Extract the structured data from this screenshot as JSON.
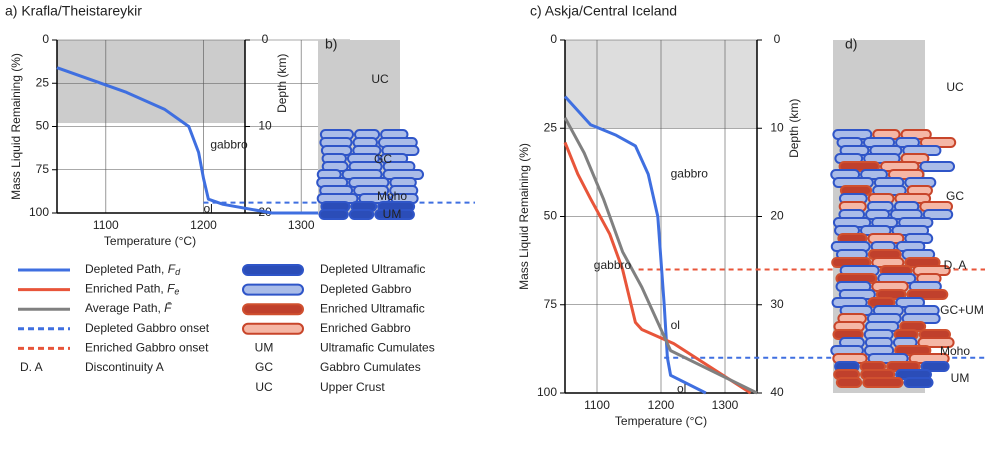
{
  "chart_data": [
    {
      "type": "line",
      "title": "a) Krafla/Theistareykir",
      "x_label": "Temperature (°C)",
      "y_label": "Mass Liquid Remaining (%)",
      "y2_label": "Depth (km)",
      "xlim": [
        1050,
        1350
      ],
      "xticks": [
        1100,
        1200,
        1300
      ],
      "ylim": [
        0,
        100
      ],
      "yticks": [
        0,
        25,
        50,
        75,
        100
      ],
      "y2lim": [
        0,
        20
      ],
      "y2ticks": [
        0,
        10,
        20
      ],
      "shaded_to": 48,
      "shade_color": "#cccccc",
      "series": [
        {
          "color": "#3f6fe0",
          "x": [
            1050,
            1080,
            1120,
            1160,
            1185,
            1195,
            1200,
            1205,
            1220,
            1270,
            1350
          ],
          "values": [
            16,
            22,
            30,
            40,
            50,
            65,
            80,
            92,
            95,
            100,
            100
          ]
        }
      ],
      "annotations": [
        {
          "text": "gabbro",
          "x": 1207,
          "y": 61,
          "color": "#3f6fe0"
        },
        {
          "text": "ol",
          "x": 1200,
          "y": 98,
          "color": "#3f6fe0"
        }
      ],
      "hlines": [
        {
          "value": 94,
          "from": 1200,
          "color": "#3f6fe0"
        }
      ]
    },
    {
      "type": "line",
      "title": "c) Askja/Central Iceland",
      "x_label": "Temperature (°C)",
      "y_label": "Mass Liquid Remaining (%)",
      "y2_label": "Depth (km)",
      "xlim": [
        1050,
        1350
      ],
      "xticks": [
        1100,
        1200,
        1300
      ],
      "ylim": [
        0,
        100
      ],
      "yticks": [
        0,
        25,
        50,
        75,
        100
      ],
      "y2lim": [
        0,
        40
      ],
      "y2ticks": [
        0,
        10,
        20,
        30,
        40
      ],
      "shaded_to": 25,
      "shade_color": "#dddddd",
      "series": [
        {
          "color": "#3f6fe0",
          "x": [
            1050,
            1070,
            1090,
            1130,
            1160,
            1180,
            1195,
            1205,
            1210,
            1215,
            1270
          ],
          "values": [
            16,
            20,
            24,
            27,
            30,
            38,
            50,
            75,
            90,
            95,
            100
          ]
        },
        {
          "color": "#e8553a",
          "x": [
            1050,
            1070,
            1090,
            1120,
            1140,
            1160,
            1170,
            1220,
            1340
          ],
          "values": [
            29,
            38,
            45,
            55,
            65,
            80,
            82,
            86,
            100
          ]
        },
        {
          "color": "#808080",
          "x": [
            1050,
            1080,
            1110,
            1140,
            1170,
            1195,
            1215,
            1350
          ],
          "values": [
            22,
            32,
            45,
            60,
            70,
            80,
            88,
            100
          ]
        }
      ],
      "annotations": [
        {
          "text": "gabbro",
          "x": 1215,
          "y": 38,
          "color": "#3f6fe0"
        },
        {
          "text": "gabbro",
          "x": 1095,
          "y": 64,
          "color": "#e8553a"
        },
        {
          "text": "ol",
          "x": 1215,
          "y": 81,
          "color": "#e8553a"
        },
        {
          "text": "ol",
          "x": 1225,
          "y": 99,
          "color": "#3f6fe0"
        }
      ],
      "hlines": [
        {
          "value": 65,
          "from": 1165,
          "color": "#e8553a"
        },
        {
          "value": 90,
          "from": 1205,
          "color": "#3f6fe0"
        }
      ]
    }
  ],
  "diagrams": [
    {
      "title": "b)",
      "labels": [
        "UC",
        "GC",
        "Moho",
        "UM"
      ]
    },
    {
      "title": "d)",
      "labels": [
        "UC",
        "GC",
        "D. A",
        "GC+UM",
        "Moho",
        "UM"
      ]
    }
  ],
  "legend": {
    "paths": [
      {
        "label": "Depleted Path, ",
        "symbol": "F",
        "sub": "d",
        "color": "#3f6fe0",
        "style": "solid"
      },
      {
        "label": "Enriched Path, ",
        "symbol": "F",
        "sub": "e",
        "color": "#e8553a",
        "style": "solid"
      },
      {
        "label": "Average Path, ",
        "symbol": "F̄",
        "color": "#808080",
        "style": "solid"
      },
      {
        "label": "Depleted Gabbro onset",
        "color": "#3f6fe0",
        "style": "dashed"
      },
      {
        "label": "Enriched Gabbro onset",
        "color": "#e8553a",
        "style": "dashed"
      },
      {
        "abbr": "D. A",
        "label": "Discontinuity A"
      }
    ],
    "rocks": [
      {
        "label": "Depleted Ultramafic",
        "fill": "#2b4db8",
        "stroke": "#2f55c8"
      },
      {
        "label": "Depleted Gabbro",
        "fill": "#aabce8",
        "stroke": "#2f55c8"
      },
      {
        "label": "Enriched Ultramafic",
        "fill": "#c0402c",
        "stroke": "#d0502f"
      },
      {
        "label": "Enriched Gabbro",
        "fill": "#f5b7a6",
        "stroke": "#c8452a"
      },
      {
        "abbr": "UM",
        "label": "Ultramafic Cumulates"
      },
      {
        "abbr": "GC",
        "label": "Gabbro Cumulates"
      },
      {
        "abbr": "UC",
        "label": "Upper Crust"
      }
    ]
  }
}
